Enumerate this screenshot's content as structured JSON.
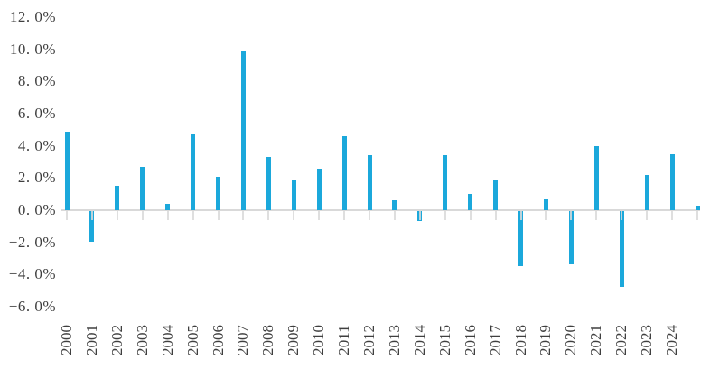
{
  "chart_data": {
    "type": "bar",
    "categories": [
      "2000",
      "2001",
      "2002",
      "2003",
      "2004",
      "2005",
      "2006",
      "2007",
      "2008",
      "2009",
      "2010",
      "2011",
      "2012",
      "2013",
      "2014",
      "2015",
      "2016",
      "2017",
      "2018",
      "2019",
      "2020",
      "2021",
      "2022",
      "2023",
      "2024",
      ""
    ],
    "values": [
      4.9,
      -1.9,
      1.5,
      2.7,
      0.4,
      4.7,
      2.1,
      9.9,
      3.3,
      1.9,
      2.6,
      4.6,
      3.4,
      0.6,
      -0.6,
      3.4,
      1.0,
      1.9,
      -3.4,
      0.7,
      -3.3,
      4.0,
      -4.7,
      2.2,
      3.5,
      0.3
    ],
    "ytick_labels": [
      "12. 0%",
      "10. 0%",
      "8. 0%",
      "6. 0%",
      "4. 0%",
      "2. 0%",
      "0. 0%",
      "−2. 0%",
      "−4. 0%",
      "−6. 0%"
    ],
    "ylim": [
      -6,
      12
    ],
    "ytick_step": 2,
    "xtick_label_rotation": -90,
    "grid": "off",
    "legend": "none",
    "bar_color": "#1BA8DB",
    "axis_color": "#D9D9D9",
    "label_color": "#3F3F3F"
  }
}
